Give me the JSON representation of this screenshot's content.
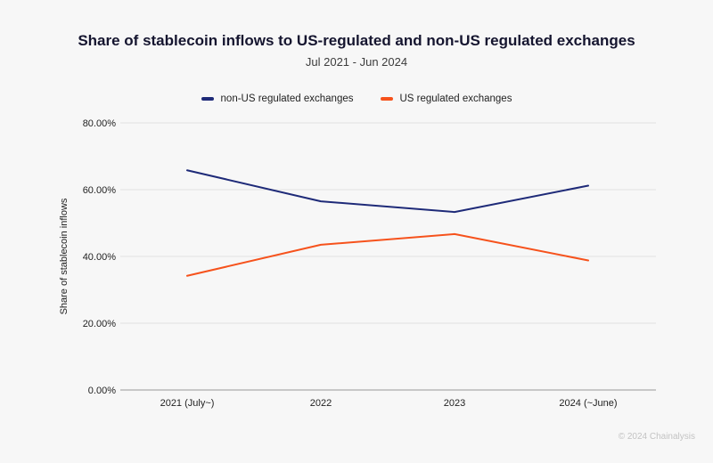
{
  "header": {
    "title": "Share of stablecoin inflows to US-regulated and non-US regulated exchanges",
    "subtitle": "Jul 2021 - Jun 2024"
  },
  "legend": {
    "items": [
      {
        "label": "non-US regulated exchanges",
        "color": "#1e2a78"
      },
      {
        "label": "US regulated exchanges",
        "color": "#f6521c"
      }
    ]
  },
  "chart_data": {
    "type": "line",
    "categories": [
      "2021 (July~)",
      "2022",
      "2023",
      "2024 (~June)"
    ],
    "series": [
      {
        "name": "non-US regulated exchanges",
        "color": "#1e2a78",
        "values": [
          65.8,
          56.5,
          53.3,
          61.2
        ]
      },
      {
        "name": "US regulated exchanges",
        "color": "#f6521c",
        "values": [
          34.2,
          43.5,
          46.7,
          38.8
        ]
      }
    ],
    "title": "Share of stablecoin inflows to US-regulated and non-US regulated exchanges",
    "subtitle": "Jul 2021 - Jun 2024",
    "xlabel": "",
    "ylabel": "Share of stablecoin inflows",
    "ylim": [
      0,
      80
    ],
    "yticks": [
      0,
      20,
      40,
      60,
      80
    ],
    "ytick_labels": [
      "0.00%",
      "20.00%",
      "40.00%",
      "60.00%",
      "80.00%"
    ],
    "grid": true,
    "legend_position": "top"
  },
  "footer": {
    "credit": "© 2024 Chainalysis"
  }
}
